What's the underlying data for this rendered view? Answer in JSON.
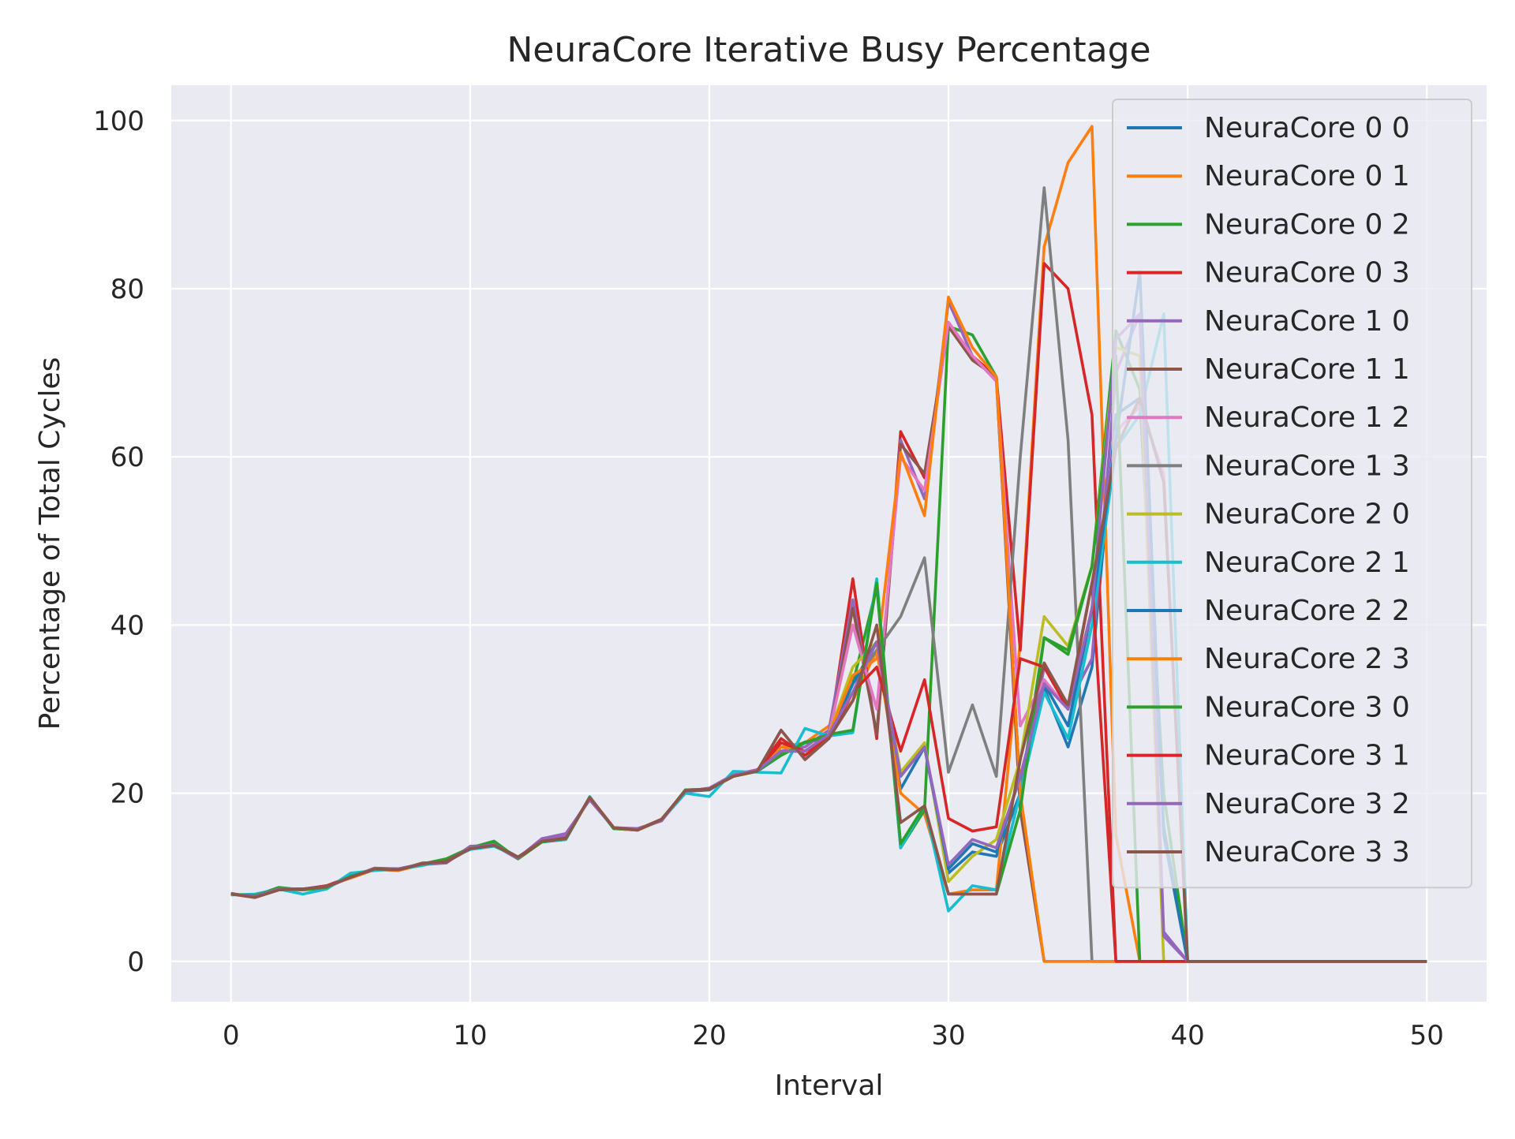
{
  "chart_data": {
    "type": "line",
    "title": "NeuraCore Iterative Busy Percentage",
    "xlabel": "Interval",
    "ylabel": "Percentage of Total Cycles",
    "xlim": [
      -2.5,
      52.5
    ],
    "ylim": [
      -4.8,
      104.2
    ],
    "xticks": [
      "0",
      "10",
      "20",
      "30",
      "40",
      "50"
    ],
    "yticks": [
      "0",
      "20",
      "40",
      "60",
      "80",
      "100"
    ],
    "grid": true,
    "legend_position": "upper-right",
    "series": [
      {
        "name": "NeuraCore 0 0",
        "color": "#1f77b4",
        "values": [
          8.0,
          7.7,
          8.6,
          8.6,
          9.0,
          10.0,
          11.0,
          11.0,
          11.5,
          12.0,
          13.5,
          14.0,
          12.4,
          14.3,
          15.0,
          19.4,
          15.8,
          15.6,
          16.8,
          20.2,
          20.4,
          22.1,
          22.6,
          24.5,
          26.0,
          26.6,
          33.0,
          37.0,
          20.5,
          25.5,
          10.5,
          13.0,
          12.5,
          20.0,
          32.5,
          25.5,
          35.0,
          65.0,
          67.0,
          16.0,
          0,
          0,
          0,
          0,
          0,
          0,
          0,
          0,
          0,
          0,
          0
        ]
      },
      {
        "name": "NeuraCore 0 1",
        "color": "#ff7f0e",
        "values": [
          8.0,
          7.6,
          8.5,
          8.5,
          9.0,
          9.9,
          10.9,
          10.8,
          11.5,
          12.0,
          13.4,
          13.8,
          12.3,
          14.3,
          14.7,
          19.5,
          15.8,
          15.6,
          16.8,
          20.3,
          20.5,
          22.0,
          22.6,
          25.5,
          26.0,
          28.0,
          31.0,
          37.0,
          20.0,
          17.5,
          8.0,
          8.5,
          8.5,
          38.0,
          85.0,
          95.0,
          99.3,
          15.0,
          0,
          0,
          0,
          0,
          0,
          0,
          0,
          0,
          0,
          0,
          0,
          0,
          0
        ]
      },
      {
        "name": "NeuraCore 0 2",
        "color": "#2ca02c",
        "values": [
          8.0,
          7.8,
          8.8,
          8.5,
          8.7,
          10.2,
          11.0,
          11.0,
          11.6,
          12.2,
          13.5,
          14.3,
          12.2,
          14.2,
          14.5,
          19.5,
          15.8,
          15.7,
          16.8,
          20.4,
          20.5,
          22.0,
          22.8,
          24.6,
          26.1,
          26.5,
          33.0,
          44.5,
          13.5,
          18.0,
          75.5,
          74.5,
          69.5,
          20.0,
          38.5,
          36.5,
          47.0,
          75.0,
          68.0,
          20.0,
          0,
          0,
          0,
          0,
          0,
          0,
          0,
          0,
          0,
          0,
          0
        ]
      },
      {
        "name": "NeuraCore 0 3",
        "color": "#d62728",
        "values": [
          8.0,
          7.7,
          8.5,
          8.6,
          9.0,
          10.1,
          10.9,
          10.9,
          11.6,
          11.9,
          13.4,
          13.9,
          12.4,
          14.3,
          14.6,
          19.5,
          15.9,
          15.7,
          16.9,
          20.2,
          20.6,
          22.1,
          22.7,
          26.5,
          24.5,
          26.6,
          45.5,
          26.5,
          63.0,
          57.5,
          76.0,
          72.0,
          69.5,
          37.0,
          83.0,
          80.0,
          65.0,
          0,
          0,
          0,
          0,
          0,
          0,
          0,
          0,
          0,
          0,
          0,
          0,
          0,
          0
        ]
      },
      {
        "name": "NeuraCore 1 0",
        "color": "#9467bd",
        "values": [
          8.0,
          7.8,
          8.7,
          8.5,
          8.8,
          10.0,
          11.1,
          11.0,
          11.5,
          11.7,
          13.7,
          13.8,
          12.2,
          14.6,
          15.2,
          19.2,
          15.9,
          15.8,
          16.7,
          20.2,
          20.6,
          22.2,
          22.8,
          25.0,
          25.5,
          27.5,
          43.0,
          27.0,
          62.0,
          55.0,
          78.5,
          72.0,
          69.0,
          20.0,
          35.0,
          30.5,
          36.0,
          70.0,
          77.0,
          3.5,
          0,
          0,
          0,
          0,
          0,
          0,
          0,
          0,
          0,
          0,
          0
        ]
      },
      {
        "name": "NeuraCore 1 1",
        "color": "#8c564b",
        "values": [
          8.1,
          7.6,
          8.5,
          8.6,
          8.9,
          10.0,
          11.0,
          10.9,
          11.7,
          11.8,
          13.4,
          13.9,
          12.4,
          14.3,
          14.7,
          19.5,
          15.9,
          15.7,
          16.9,
          20.3,
          20.5,
          22.0,
          22.6,
          27.5,
          24.0,
          26.5,
          42.0,
          27.0,
          61.5,
          58.0,
          75.5,
          71.5,
          69.5,
          18.0,
          0,
          0,
          0,
          0,
          0,
          0,
          0,
          0,
          0,
          0,
          0,
          0,
          0,
          0,
          0,
          0,
          0
        ]
      },
      {
        "name": "NeuraCore 1 2",
        "color": "#e377c2",
        "values": [
          8.0,
          7.7,
          8.6,
          8.6,
          8.9,
          10.0,
          11.0,
          11.0,
          11.6,
          11.9,
          13.5,
          13.9,
          12.3,
          14.4,
          14.8,
          19.4,
          15.9,
          15.7,
          16.8,
          20.3,
          20.5,
          22.1,
          22.7,
          25.0,
          25.0,
          27.0,
          40.0,
          30.0,
          60.0,
          56.0,
          76.0,
          72.0,
          69.0,
          28.0,
          33.5,
          30.0,
          40.0,
          63.0,
          66.0,
          58.0,
          0,
          0,
          0,
          0,
          0,
          0,
          0,
          0,
          0,
          0,
          0
        ]
      },
      {
        "name": "NeuraCore 1 3",
        "color": "#7f7f7f",
        "values": [
          8.0,
          7.7,
          8.6,
          8.6,
          8.9,
          10.0,
          11.0,
          11.0,
          11.6,
          11.9,
          13.5,
          13.9,
          12.3,
          14.3,
          14.7,
          19.5,
          15.9,
          15.7,
          16.8,
          20.3,
          20.5,
          22.1,
          22.7,
          25.0,
          25.0,
          27.0,
          33.0,
          37.0,
          41.0,
          48.0,
          22.5,
          30.5,
          22.0,
          60.0,
          92.0,
          62.0,
          0,
          0,
          0,
          0,
          0,
          0,
          0,
          0,
          0,
          0,
          0,
          0,
          0,
          0,
          0
        ]
      },
      {
        "name": "NeuraCore 2 0",
        "color": "#bcbd22",
        "values": [
          8.0,
          7.7,
          8.6,
          8.6,
          8.9,
          10.0,
          11.0,
          11.0,
          11.6,
          11.9,
          13.5,
          13.9,
          12.3,
          14.3,
          14.7,
          19.5,
          15.9,
          15.7,
          16.8,
          20.3,
          20.5,
          22.1,
          22.7,
          25.5,
          25.0,
          27.0,
          35.0,
          38.0,
          22.5,
          26.0,
          9.5,
          12.5,
          14.5,
          24.0,
          41.0,
          37.5,
          47.0,
          73.0,
          72.0,
          0,
          0,
          0,
          0,
          0,
          0,
          0,
          0,
          0,
          0,
          0,
          0
        ]
      },
      {
        "name": "NeuraCore 2 1",
        "color": "#17becf",
        "values": [
          7.9,
          8.0,
          8.6,
          8.0,
          8.6,
          10.5,
          10.8,
          11.0,
          11.4,
          12.0,
          13.3,
          13.7,
          12.4,
          14.2,
          14.5,
          19.6,
          15.8,
          15.7,
          16.8,
          20.0,
          19.6,
          22.6,
          22.5,
          22.4,
          27.7,
          26.8,
          27.2,
          45.5,
          13.5,
          18.5,
          6.0,
          9.0,
          8.5,
          20.0,
          32.0,
          26.5,
          40.0,
          61.0,
          65.0,
          77.0,
          0,
          0,
          0,
          0,
          0,
          0,
          0,
          0,
          0,
          0,
          0
        ]
      },
      {
        "name": "NeuraCore 2 2",
        "color": "#1f77b4",
        "values": [
          8.0,
          7.8,
          8.6,
          8.6,
          8.9,
          10.0,
          11.0,
          11.0,
          11.6,
          11.9,
          13.5,
          13.9,
          12.3,
          14.3,
          14.7,
          19.5,
          15.9,
          15.7,
          16.8,
          20.3,
          20.5,
          22.1,
          22.7,
          25.0,
          25.0,
          27.0,
          33.0,
          38.0,
          22.0,
          25.5,
          11.0,
          14.0,
          13.0,
          22.0,
          33.0,
          28.0,
          42.0,
          62.0,
          82.0,
          15.0,
          0,
          0,
          0,
          0,
          0,
          0,
          0,
          0,
          0,
          0,
          0
        ]
      },
      {
        "name": "NeuraCore 2 3",
        "color": "#ff7f0e",
        "values": [
          8.0,
          7.7,
          8.6,
          8.6,
          8.9,
          10.0,
          11.0,
          11.0,
          11.6,
          11.9,
          13.5,
          13.9,
          12.3,
          14.3,
          14.7,
          19.5,
          15.9,
          15.7,
          16.8,
          20.3,
          20.5,
          22.1,
          22.7,
          25.5,
          25.0,
          27.0,
          34.0,
          36.0,
          60.5,
          53.0,
          79.0,
          73.0,
          69.5,
          20.0,
          0,
          0,
          0,
          0,
          0,
          0,
          0,
          0,
          0,
          0,
          0,
          0,
          0,
          0,
          0,
          0,
          0
        ]
      },
      {
        "name": "NeuraCore 3 0",
        "color": "#2ca02c",
        "values": [
          8.0,
          7.8,
          8.7,
          8.5,
          8.8,
          10.1,
          11.0,
          11.0,
          11.6,
          12.1,
          13.5,
          14.2,
          12.2,
          14.2,
          14.6,
          19.5,
          15.8,
          15.7,
          16.8,
          20.4,
          20.5,
          22.0,
          22.7,
          24.5,
          26.0,
          27.0,
          27.5,
          45.0,
          14.0,
          18.5,
          8.0,
          8.0,
          8.0,
          18.0,
          38.5,
          37.0,
          47.0,
          72.0,
          0,
          0,
          0,
          0,
          0,
          0,
          0,
          0,
          0,
          0,
          0,
          0,
          0
        ]
      },
      {
        "name": "NeuraCore 3 1",
        "color": "#d62728",
        "values": [
          8.0,
          7.7,
          8.6,
          8.6,
          8.9,
          10.0,
          11.0,
          11.0,
          11.6,
          11.9,
          13.5,
          13.9,
          12.3,
          14.3,
          14.7,
          19.5,
          15.9,
          15.7,
          16.8,
          20.3,
          20.5,
          22.1,
          22.7,
          26.0,
          25.0,
          26.5,
          32.0,
          35.0,
          25.0,
          33.5,
          17.0,
          15.5,
          16.0,
          36.0,
          35.0,
          30.0,
          45.0,
          0,
          0,
          0,
          0,
          0,
          0,
          0,
          0,
          0,
          0,
          0,
          0,
          0,
          0
        ]
      },
      {
        "name": "NeuraCore 3 2",
        "color": "#9467bd",
        "values": [
          8.0,
          7.7,
          8.6,
          8.6,
          8.9,
          10.0,
          11.0,
          11.0,
          11.6,
          11.9,
          13.5,
          13.9,
          12.3,
          14.6,
          15.0,
          19.4,
          15.9,
          15.7,
          16.8,
          20.3,
          20.5,
          22.1,
          22.7,
          25.0,
          25.0,
          27.0,
          32.0,
          38.0,
          22.0,
          25.5,
          11.5,
          14.5,
          13.5,
          22.0,
          33.0,
          30.0,
          42.0,
          74.0,
          77.0,
          3.0,
          0,
          0,
          0,
          0,
          0,
          0,
          0,
          0,
          0,
          0,
          0
        ]
      },
      {
        "name": "NeuraCore 3 3",
        "color": "#8c564b",
        "values": [
          8.0,
          7.6,
          8.5,
          8.6,
          8.9,
          10.0,
          11.0,
          10.9,
          11.6,
          11.9,
          13.4,
          13.8,
          12.4,
          14.3,
          14.6,
          19.5,
          15.9,
          15.6,
          16.9,
          20.3,
          20.5,
          22.0,
          22.6,
          27.5,
          24.0,
          26.5,
          31.0,
          40.0,
          16.5,
          18.5,
          8.0,
          8.0,
          8.0,
          24.0,
          35.5,
          30.5,
          45.0,
          61.0,
          67.0,
          57.0,
          0,
          0,
          0,
          0,
          0,
          0,
          0,
          0,
          0,
          0,
          0
        ]
      }
    ]
  }
}
